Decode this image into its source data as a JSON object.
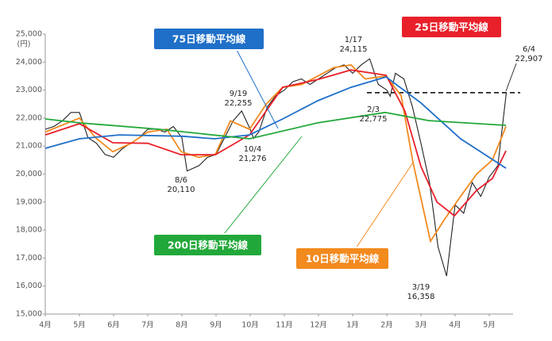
{
  "chart_data": {
    "type": "line",
    "y_unit": "(円)",
    "ylim": [
      15000,
      25000
    ],
    "yticks": [
      {
        "value": 15000,
        "label": "15,000"
      },
      {
        "value": 16000,
        "label": "16,000"
      },
      {
        "value": 17000,
        "label": "17,000"
      },
      {
        "value": 18000,
        "label": "18,000"
      },
      {
        "value": 19000,
        "label": "19,000"
      },
      {
        "value": 20000,
        "label": "20,000"
      },
      {
        "value": 21000,
        "label": "21,000"
      },
      {
        "value": 22000,
        "label": "22,000"
      },
      {
        "value": 23000,
        "label": "23,000"
      },
      {
        "value": 24000,
        "label": "24,000"
      },
      {
        "value": 25000,
        "label": "25,000"
      }
    ],
    "xlim": [
      0,
      13.7
    ],
    "xticks": [
      {
        "value": 0,
        "label": "4月"
      },
      {
        "value": 1,
        "label": "5月"
      },
      {
        "value": 2,
        "label": "6月"
      },
      {
        "value": 3,
        "label": "7月"
      },
      {
        "value": 4,
        "label": "8月"
      },
      {
        "value": 5,
        "label": "9月"
      },
      {
        "value": 6,
        "label": "10月"
      },
      {
        "value": 7,
        "label": "11月"
      },
      {
        "value": 8,
        "label": "12月"
      },
      {
        "value": 9,
        "label": "1月"
      },
      {
        "value": 10,
        "label": "2月"
      },
      {
        "value": 11,
        "label": "3月"
      },
      {
        "value": 12,
        "label": "4月"
      },
      {
        "value": 13,
        "label": "5月"
      }
    ],
    "series": [
      {
        "color": "#222222",
        "x": [
          0,
          0.25,
          0.5,
          0.75,
          1,
          1.25,
          1.5,
          1.75,
          2,
          2.25,
          2.5,
          2.75,
          3,
          3.25,
          3.5,
          3.75,
          4,
          4.15,
          4.5,
          4.75,
          5,
          5.25,
          5.5,
          5.75,
          6,
          6.1,
          6.25,
          6.5,
          6.75,
          7,
          7.25,
          7.5,
          7.75,
          8,
          8.25,
          8.5,
          8.75,
          9,
          9.25,
          9.5,
          9.75,
          10,
          10.1,
          10.25,
          10.5,
          10.75,
          11,
          11.25,
          11.5,
          11.75,
          12,
          12.25,
          12.5,
          12.75,
          13,
          13.25,
          13.5
        ],
        "values": [
          21600,
          21700,
          21900,
          22200,
          22200,
          21300,
          21100,
          20700,
          20600,
          20900,
          21100,
          21300,
          21600,
          21600,
          21500,
          21700,
          21300,
          20110,
          20300,
          20600,
          20700,
          21300,
          21900,
          22255,
          21600,
          21276,
          21500,
          22400,
          22800,
          23000,
          23300,
          23400,
          23200,
          23400,
          23600,
          23800,
          23900,
          23600,
          23900,
          24115,
          23200,
          23000,
          22775,
          23600,
          23400,
          22400,
          21100,
          19700,
          17400,
          16358,
          18900,
          18600,
          19700,
          19200,
          19900,
          20300,
          22907
        ]
      },
      {
        "name": "10日移動平均線",
        "color": "#f28a1e",
        "x": [
          0,
          1,
          1.47,
          1.98,
          2.51,
          3,
          3.56,
          3.98,
          4.49,
          4.98,
          5.42,
          5.98,
          6.47,
          6.95,
          7.51,
          7.98,
          8.44,
          8.95,
          9.37,
          9.98,
          10.42,
          10.77,
          11.28,
          11.7,
          12.16,
          12.63,
          13.09,
          13.49
        ],
        "values": [
          21500,
          22000,
          21300,
          20800,
          21100,
          21500,
          21600,
          20800,
          20600,
          20700,
          21900,
          21600,
          22500,
          23100,
          23200,
          23500,
          23800,
          23900,
          23400,
          23500,
          22800,
          20400,
          17600,
          18400,
          19200,
          20000,
          20500,
          21700
        ]
      },
      {
        "name": "25日移動平均線",
        "color": "#e8202a",
        "x": [
          0,
          1,
          1.98,
          3,
          3.98,
          4.98,
          5.98,
          6.95,
          7.98,
          8.95,
          9.98,
          10.53,
          11,
          11.47,
          11.98,
          12.63,
          13.09,
          13.49
        ],
        "values": [
          21400,
          21800,
          21120,
          21100,
          20690,
          20690,
          21400,
          23100,
          23380,
          23720,
          23530,
          22250,
          20270,
          19000,
          18510,
          19420,
          19840,
          20830
        ]
      },
      {
        "name": "75日移動平均線",
        "color": "#1f6fc8",
        "x": [
          0,
          1,
          2.16,
          4.02,
          4.95,
          5.98,
          6.95,
          7.98,
          8.95,
          9.98,
          11,
          12.16,
          13.49
        ],
        "values": [
          20920,
          21260,
          21400,
          21350,
          21260,
          21400,
          21970,
          22620,
          23100,
          23470,
          22540,
          21260,
          20210
        ]
      },
      {
        "name": "200日移動平均線",
        "color": "#22a83a",
        "x": [
          0,
          1,
          3.33,
          5.98,
          7.98,
          9.95,
          11.23,
          13.49
        ],
        "values": [
          21970,
          21830,
          21600,
          21260,
          21830,
          22200,
          21910,
          21740
        ]
      }
    ],
    "annotations": [
      {
        "date": "8/6",
        "value": 20110,
        "label": "20,110"
      },
      {
        "date": "9/19",
        "value": 22255,
        "label": "22,255"
      },
      {
        "date": "10/4",
        "value": 21276,
        "label": "21,276"
      },
      {
        "date": "1/17",
        "value": 24115,
        "label": "24,115"
      },
      {
        "date": "2/3",
        "value": 22775,
        "label": "22,775"
      },
      {
        "date": "3/19",
        "value": 16358,
        "label": "16,358"
      },
      {
        "date": "6/4",
        "value": 22907,
        "label": "22,907"
      }
    ]
  }
}
